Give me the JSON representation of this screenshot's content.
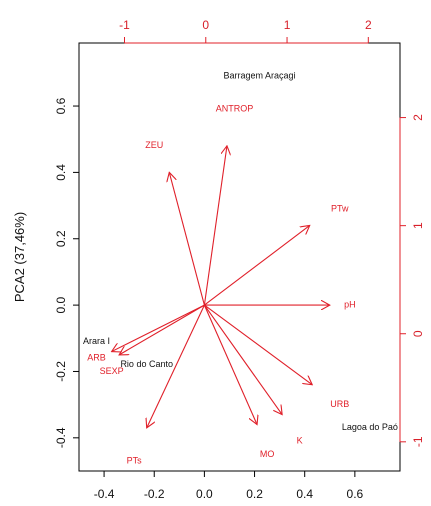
{
  "chart_data": {
    "type": "biplot",
    "xlabel": "",
    "ylabel": "PCA2 (37,46%)",
    "colors": {
      "variables": "#e0202a",
      "sites": "#111111",
      "frame": "#000000"
    },
    "bottom_axis": {
      "range": [
        -0.5,
        0.78
      ],
      "ticks": [
        -0.4,
        -0.2,
        0.0,
        0.2,
        0.4,
        0.6
      ],
      "tick_labels": [
        "-0.4",
        "-0.2",
        "0.0",
        "0.2",
        "0.4",
        "0.6"
      ]
    },
    "left_axis": {
      "range": [
        -0.5,
        0.79
      ],
      "ticks": [
        -0.4,
        -0.2,
        0.0,
        0.2,
        0.4,
        0.6
      ],
      "tick_labels": [
        "-0.4",
        "-0.2",
        "0.0",
        "0.2",
        "0.4",
        "0.6"
      ]
    },
    "top_axis": {
      "range": [
        -1.56,
        2.39
      ],
      "ticks": [
        -1,
        0,
        1,
        2
      ],
      "tick_labels": [
        "-1",
        "0",
        "1",
        "2"
      ]
    },
    "right_axis": {
      "range": [
        -1.27,
        2.69
      ],
      "ticks": [
        -1,
        0,
        1,
        2
      ],
      "tick_labels": [
        "-1",
        "0",
        "1",
        "2"
      ]
    },
    "vectors": [
      {
        "name": "ANTROP",
        "x": 0.09,
        "y": 0.48,
        "label_x": 0.12,
        "label_y": 0.59
      },
      {
        "name": "ZEU",
        "x": -0.14,
        "y": 0.4,
        "label_x": -0.2,
        "label_y": 0.48
      },
      {
        "name": "PTw",
        "x": 0.42,
        "y": 0.24,
        "label_x": 0.54,
        "label_y": 0.29
      },
      {
        "name": "pH",
        "x": 0.5,
        "y": 0.0,
        "label_x": 0.58,
        "label_y": 0.0
      },
      {
        "name": "ARB",
        "x": -0.37,
        "y": -0.14,
        "label_x": -0.43,
        "label_y": -0.16
      },
      {
        "name": "SEXP",
        "x": -0.34,
        "y": -0.15,
        "label_x": -0.37,
        "label_y": -0.2
      },
      {
        "name": "URB",
        "x": 0.43,
        "y": -0.24,
        "label_x": 0.54,
        "label_y": -0.3
      },
      {
        "name": "K",
        "x": 0.31,
        "y": -0.33,
        "label_x": 0.38,
        "label_y": -0.41
      },
      {
        "name": "MO",
        "x": 0.21,
        "y": -0.36,
        "label_x": 0.25,
        "label_y": -0.45
      },
      {
        "name": "PTs",
        "x": -0.23,
        "y": -0.37,
        "label_x": -0.28,
        "label_y": -0.47
      }
    ],
    "sites": [
      {
        "name": "Barragem Araçagi",
        "x": 0.22,
        "y": 0.69
      },
      {
        "name": "Arara I",
        "x": -0.43,
        "y": -0.11
      },
      {
        "name": "Rio do Canto",
        "x": -0.23,
        "y": -0.18
      },
      {
        "name": "Lagoa do Paó",
        "x": 0.66,
        "y": -0.37
      }
    ]
  }
}
